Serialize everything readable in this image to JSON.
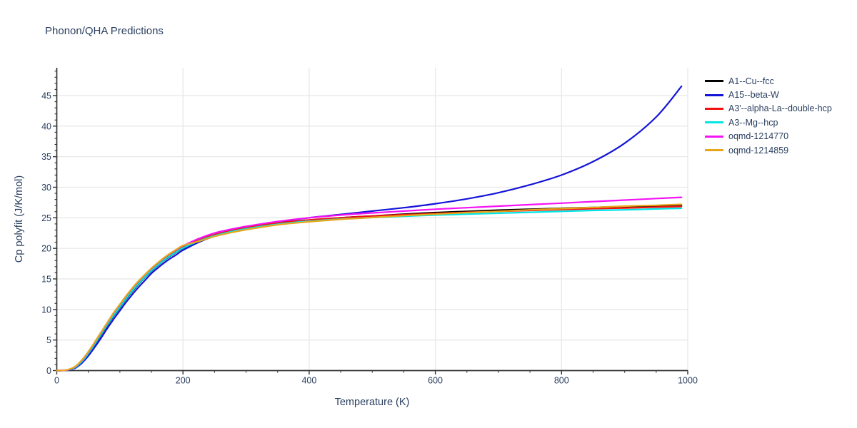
{
  "chart": {
    "colors": {
      "text": "#2a3f5f",
      "grid": "#e8e8e8",
      "axis": "#333333",
      "background": "#ffffff"
    }
  },
  "chart_data": {
    "type": "line",
    "title": "Phonon/QHA Predictions",
    "xlabel": "Temperature (K)",
    "ylabel": "Cp polyfit (J/K/mol)",
    "xlim": [
      0,
      1000
    ],
    "ylim": [
      0,
      49.55
    ],
    "xticks": [
      0,
      200,
      400,
      600,
      800,
      1000
    ],
    "yticks": [
      0,
      5,
      10,
      15,
      20,
      25,
      30,
      35,
      40,
      45
    ],
    "x_minor_step": 50,
    "y_minor_step": 1,
    "grid": true,
    "legend_position": "top-right-outside",
    "x": [
      0,
      5,
      10,
      15,
      20,
      25,
      30,
      35,
      40,
      45,
      50,
      60,
      70,
      80,
      90,
      100,
      110,
      125,
      140,
      150,
      160,
      175,
      190,
      200,
      225,
      250,
      275,
      300,
      350,
      400,
      450,
      500,
      550,
      600,
      650,
      700,
      750,
      800,
      850,
      900,
      950,
      990
    ],
    "series": [
      {
        "name": "A1--Cu--fcc",
        "color": "#000000",
        "values": [
          0,
          0,
          0.02,
          0.06,
          0.15,
          0.3,
          0.55,
          0.95,
          1.45,
          2.05,
          2.7,
          4.2,
          5.8,
          7.4,
          8.9,
          10.3,
          11.7,
          13.6,
          15.3,
          16.3,
          17.2,
          18.4,
          19.4,
          20.0,
          21.2,
          22.1,
          22.8,
          23.3,
          24.1,
          24.6,
          25.0,
          25.3,
          25.6,
          25.85,
          26.05,
          26.25,
          26.4,
          26.55,
          26.7,
          26.85,
          26.95,
          27.05
        ]
      },
      {
        "name": "A15--beta-W",
        "color": "#1414d9",
        "values": [
          0,
          0,
          0.01,
          0.05,
          0.12,
          0.25,
          0.45,
          0.8,
          1.25,
          1.8,
          2.4,
          3.8,
          5.3,
          6.9,
          8.4,
          9.8,
          11.2,
          13.1,
          14.8,
          15.9,
          16.8,
          18.0,
          19.0,
          19.7,
          21.0,
          22.0,
          22.8,
          23.4,
          24.3,
          25.0,
          25.55,
          26.1,
          26.65,
          27.3,
          28.1,
          29.1,
          30.4,
          32.0,
          34.2,
          37.2,
          41.5,
          46.5
        ]
      },
      {
        "name": "A3'--alpha-La--double-hcp",
        "color": "#f31212",
        "values": [
          0,
          0,
          0.02,
          0.07,
          0.18,
          0.36,
          0.63,
          1.05,
          1.6,
          2.2,
          2.9,
          4.4,
          6.0,
          7.6,
          9.15,
          10.55,
          11.95,
          13.85,
          15.5,
          16.5,
          17.4,
          18.6,
          19.6,
          20.2,
          21.35,
          22.25,
          22.9,
          23.4,
          24.15,
          24.65,
          25.0,
          25.3,
          25.5,
          25.7,
          25.9,
          26.05,
          26.2,
          26.35,
          26.5,
          26.6,
          26.75,
          26.85
        ]
      },
      {
        "name": "A3--Mg--hcp",
        "color": "#00e5e5",
        "values": [
          0,
          0,
          0.02,
          0.06,
          0.16,
          0.32,
          0.58,
          1.0,
          1.5,
          2.1,
          2.8,
          4.3,
          5.9,
          7.5,
          9.0,
          10.4,
          11.8,
          13.7,
          15.35,
          16.35,
          17.25,
          18.45,
          19.45,
          20.05,
          21.2,
          22.05,
          22.7,
          23.2,
          23.95,
          24.45,
          24.8,
          25.05,
          25.25,
          25.45,
          25.6,
          25.75,
          25.9,
          26.05,
          26.2,
          26.3,
          26.45,
          26.55
        ]
      },
      {
        "name": "oqmd-1214770",
        "color": "#f513f5",
        "values": [
          0,
          0,
          0.03,
          0.08,
          0.2,
          0.4,
          0.7,
          1.15,
          1.7,
          2.35,
          3.05,
          4.6,
          6.2,
          7.8,
          9.4,
          10.8,
          12.2,
          14.1,
          15.7,
          16.7,
          17.6,
          18.8,
          19.8,
          20.4,
          21.6,
          22.5,
          23.1,
          23.6,
          24.4,
          25.0,
          25.45,
          25.8,
          26.1,
          26.4,
          26.65,
          26.9,
          27.15,
          27.4,
          27.65,
          27.9,
          28.15,
          28.35
        ]
      },
      {
        "name": "oqmd-1214859",
        "color": "#e9a61a",
        "values": [
          0,
          0,
          0.03,
          0.09,
          0.22,
          0.42,
          0.72,
          1.2,
          1.75,
          2.4,
          3.1,
          4.65,
          6.25,
          7.85,
          9.45,
          10.85,
          12.25,
          14.15,
          15.75,
          16.75,
          17.65,
          18.85,
          19.85,
          20.45,
          21.15,
          21.95,
          22.55,
          23.05,
          23.85,
          24.35,
          24.75,
          25.05,
          25.35,
          25.6,
          25.85,
          26.05,
          26.3,
          26.5,
          26.7,
          26.9,
          27.05,
          27.2
        ]
      }
    ]
  }
}
